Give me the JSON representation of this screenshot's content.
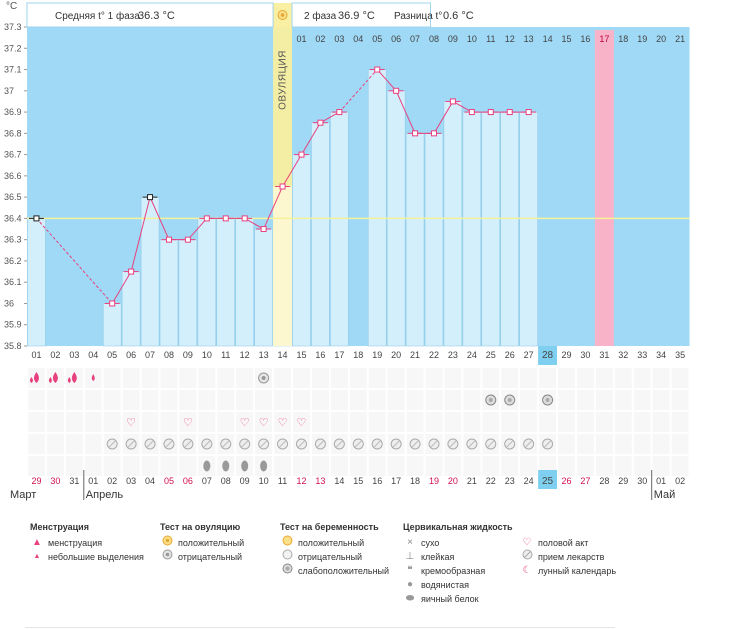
{
  "unit_label": "°C",
  "header": {
    "phase1_label": "Средняя t° 1 фаза",
    "phase1_value": "36.3 °C",
    "phase2_label": "2 фаза",
    "phase2_value": "36.9 °C",
    "diff_label": "Разница t°",
    "diff_value": "0.6 °C"
  },
  "ovulation_label": "ОВУЛЯЦИЯ",
  "colors": {
    "plot_bg": "#9fd9f5",
    "bar_fill": "#d3effc",
    "bar_stroke": "#8bc6e4",
    "line": "#e8417f",
    "coverline": "#f5f29a",
    "ovulation": "#f9ef9f",
    "pink_day": "#f9b3c8",
    "highlight": "#7fd0f0",
    "red_date": "#d0104c"
  },
  "chart_data": {
    "type": "bar",
    "title": "",
    "ylim": [
      35.8,
      37.3
    ],
    "yticks": [
      "37.3",
      "37.2",
      "37.1",
      "37",
      "36.9",
      "36.8",
      "36.7",
      "36.6",
      "36.5",
      "36.4",
      "36.3",
      "36.2",
      "36.1",
      "36",
      "35.9",
      "35.8"
    ],
    "coverline": 36.4,
    "ovulation_index": 13,
    "pink_index": 30,
    "today_index": 27,
    "cycle_days": [
      "01",
      "02",
      "03",
      "04",
      "05",
      "06",
      "07",
      "08",
      "09",
      "10",
      "11",
      "12",
      "13",
      "14",
      "15",
      "16",
      "17",
      "18",
      "19",
      "20",
      "21",
      "22",
      "23",
      "24",
      "25",
      "26",
      "27",
      "28",
      "29",
      "30",
      "31",
      "32",
      "33",
      "34",
      "35"
    ],
    "top_days": [
      "01",
      "02",
      "03",
      "04",
      "05",
      "06",
      "07",
      "08",
      "09",
      "10",
      "11",
      "12",
      "13",
      "14",
      "15",
      "16",
      "17",
      "18",
      "19",
      "20",
      "21"
    ],
    "temps": [
      36.4,
      null,
      null,
      null,
      36.0,
      36.15,
      36.5,
      36.3,
      36.3,
      36.4,
      36.4,
      36.4,
      36.35,
      36.55,
      36.7,
      36.85,
      36.9,
      null,
      37.1,
      37.0,
      36.8,
      36.8,
      36.95,
      36.9,
      36.9,
      36.9,
      36.9,
      null,
      null,
      null,
      null,
      null,
      null,
      null,
      null
    ],
    "black_markers": [
      0,
      6
    ],
    "dates": [
      "29",
      "30",
      "31",
      "01",
      "02",
      "03",
      "04",
      "05",
      "06",
      "07",
      "08",
      "09",
      "10",
      "11",
      "12",
      "13",
      "14",
      "15",
      "16",
      "17",
      "18",
      "19",
      "20",
      "21",
      "22",
      "23",
      "24",
      "25",
      "26",
      "27",
      "28",
      "29",
      "30",
      "01",
      "02"
    ],
    "red_dates": [
      0,
      1,
      7,
      8,
      14,
      15,
      21,
      22,
      28,
      29
    ],
    "months": [
      {
        "label": "Март",
        "start": 0
      },
      {
        "label": "Апрель",
        "start": 3
      },
      {
        "label": "Май",
        "start": 33
      }
    ]
  },
  "marks": {
    "menstruation": [
      0,
      1,
      2
    ],
    "spotting": [
      3
    ],
    "ovulation_negative": [
      12
    ],
    "pregnancy_weak": [
      24,
      25,
      27
    ],
    "intercourse": [
      5,
      8,
      11,
      12,
      13,
      14
    ],
    "medication": [
      4,
      5,
      6,
      7,
      8,
      9,
      10,
      11,
      12,
      13,
      14,
      15,
      16,
      17,
      18,
      19,
      20,
      21,
      22,
      23,
      24,
      25,
      26,
      27
    ],
    "egg_white": [
      9,
      10,
      11,
      12
    ]
  },
  "legend": {
    "menstruation": {
      "title": "Менструация",
      "items": [
        "менструация",
        "небольшие выделения"
      ]
    },
    "ovulation_test": {
      "title": "Тест на овуляцию",
      "items": [
        "положительный",
        "отрицательный"
      ]
    },
    "pregnancy_test": {
      "title": "Тест на беременность",
      "items": [
        "положительный",
        "отрицательный",
        "слабоположительный"
      ]
    },
    "cervical": {
      "title": "Цервикальная жидкость",
      "items": [
        "сухо",
        "клейкая",
        "кремообразная",
        "водянистая",
        "яичный белок"
      ]
    },
    "other": {
      "items": [
        "половой акт",
        "прием лекарств",
        "лунный календарь"
      ]
    }
  }
}
